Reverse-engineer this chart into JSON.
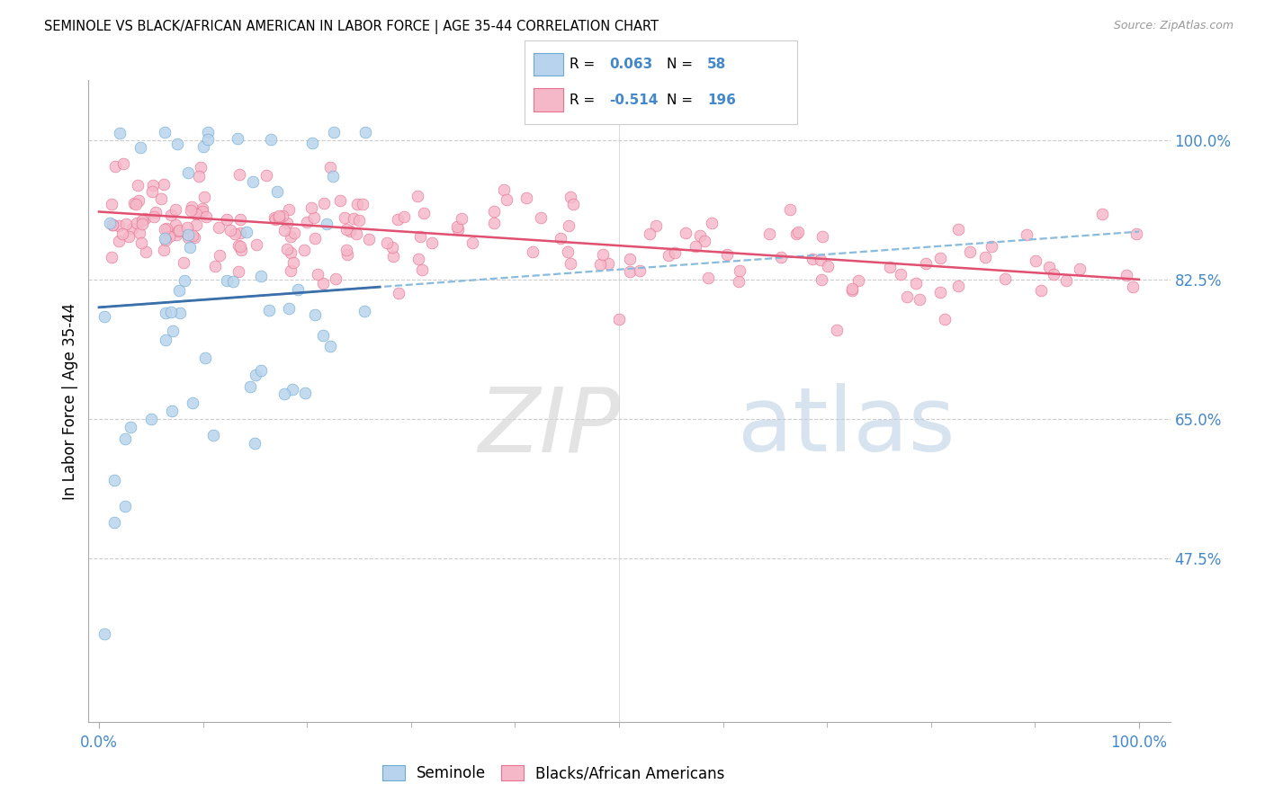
{
  "title": "SEMINOLE VS BLACK/AFRICAN AMERICAN IN LABOR FORCE | AGE 35-44 CORRELATION CHART",
  "source": "Source: ZipAtlas.com",
  "ylabel": "In Labor Force | Age 35-44",
  "r_seminole": 0.063,
  "n_seminole": 58,
  "r_black": -0.514,
  "n_black": 196,
  "color_seminole_face": "#b8d4ec",
  "color_seminole_edge": "#6aaad4",
  "color_black_face": "#f5b8c8",
  "color_black_edge": "#e87090",
  "trendline_seminole_solid": "#3a6faa",
  "trendline_seminole_dashed": "#88bbdd",
  "trendline_black": "#e05070",
  "label_color_axis": "#4488cc",
  "watermark_zip": "ZIP",
  "watermark_atlas": "atlas",
  "legend_label_seminole": "Seminole",
  "legend_label_black": "Blacks/African Americans",
  "ytick_vals": [
    0.475,
    0.65,
    0.825,
    1.0
  ],
  "ytick_labels": [
    "47.5%",
    "65.0%",
    "82.5%",
    "100.0%"
  ],
  "xlim": [
    -0.01,
    1.03
  ],
  "ylim": [
    0.27,
    1.075
  ],
  "seminole_intercept": 0.79,
  "seminole_slope": 0.095,
  "black_intercept": 0.91,
  "black_slope": -0.085
}
